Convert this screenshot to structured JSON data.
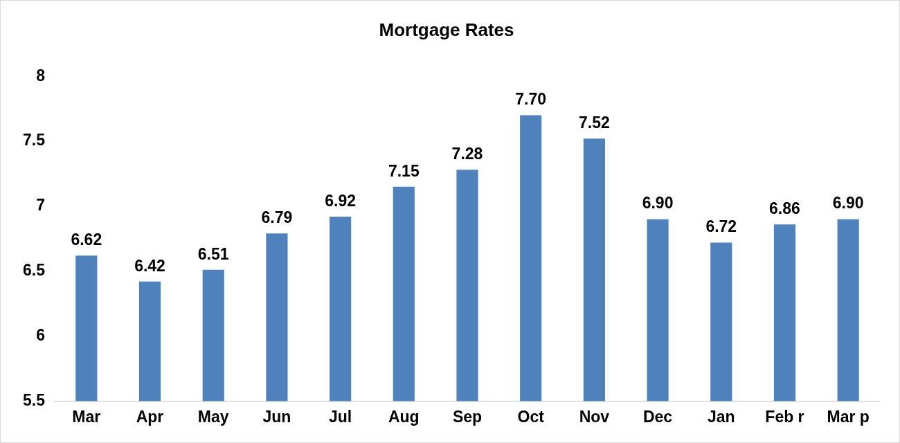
{
  "chart_data": {
    "type": "bar",
    "title": "Mortgage Rates",
    "categories": [
      "Mar",
      "Apr",
      "May",
      "Jun",
      "Jul",
      "Aug",
      "Sep",
      "Oct",
      "Nov",
      "Dec",
      "Jan",
      "Feb r",
      "Mar p"
    ],
    "values": [
      6.62,
      6.42,
      6.51,
      6.79,
      6.92,
      7.15,
      7.28,
      7.7,
      7.52,
      6.9,
      6.72,
      6.86,
      6.9
    ],
    "value_labels": [
      "6.62",
      "6.42",
      "6.51",
      "6.79",
      "6.92",
      "7.15",
      "7.28",
      "7.70",
      "7.52",
      "6.90",
      "6.72",
      "6.86",
      "6.90"
    ],
    "color": "#4f81bd",
    "ylim": [
      5.5,
      8
    ],
    "yticks": [
      5.5,
      6,
      6.5,
      7,
      7.5,
      8
    ],
    "grid": false,
    "data_labels": true
  }
}
